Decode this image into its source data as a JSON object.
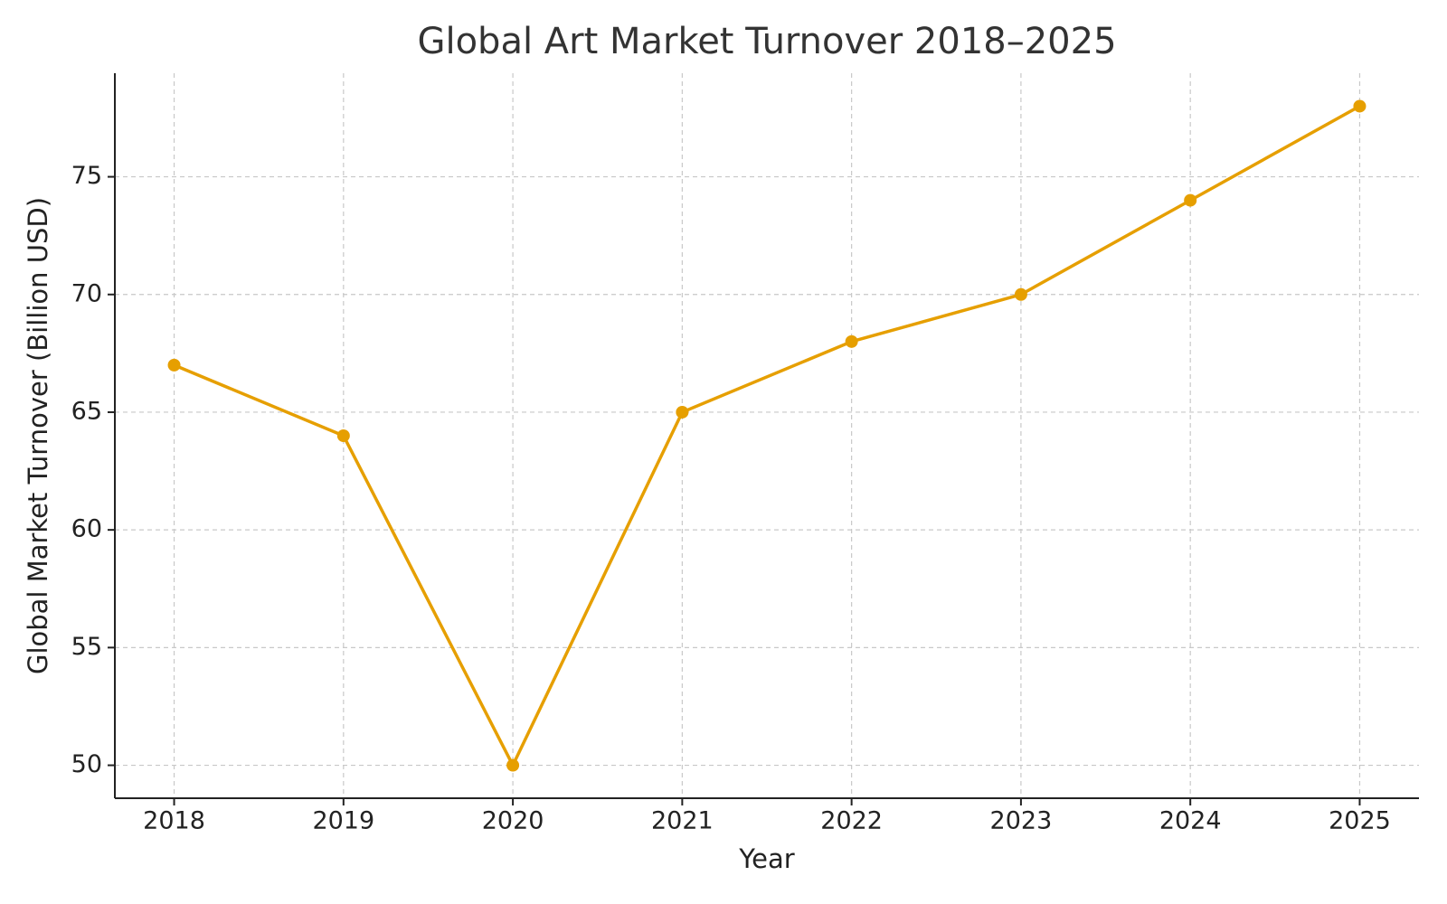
{
  "chart_data": {
    "type": "line",
    "title": "Global Art Market Turnover 2018–2025",
    "x_label": "Year",
    "y_label": "Global Market Turnover (Billion USD)",
    "x": [
      2018,
      2019,
      2020,
      2021,
      2022,
      2023,
      2024,
      2025
    ],
    "values": [
      67,
      64,
      50,
      65,
      68,
      70,
      74,
      78
    ],
    "color": "#e69f00",
    "xlim": [
      2017.65,
      2025.35
    ],
    "xticks": [
      2018,
      2019,
      2020,
      2021,
      2022,
      2023,
      2024,
      2025
    ],
    "ylim": [
      48.6,
      79.4
    ],
    "yticks": [
      50,
      55,
      60,
      65,
      70,
      75
    ],
    "grid": true
  }
}
